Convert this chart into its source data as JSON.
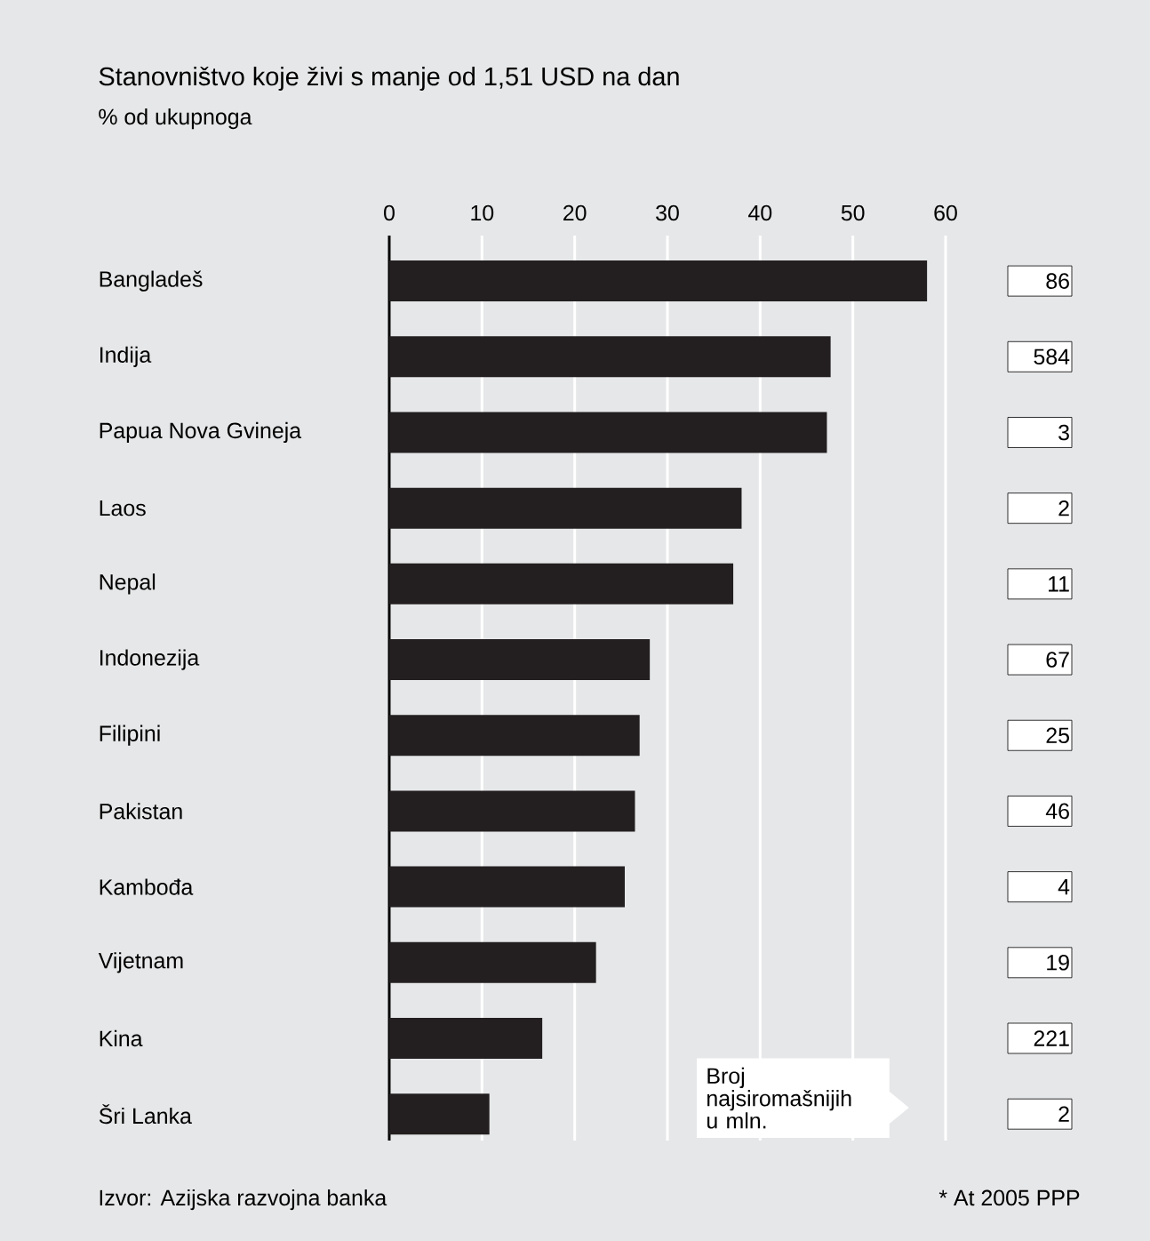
{
  "chart_data": [
    {
      "type": "bar",
      "orientation": "horizontal",
      "title": "Stanovništvo koje živi s manje od 1,51 USD na dan",
      "subtitle": "% od ukupnoga",
      "categories": [
        "Bangladeš",
        "Indija",
        "Papua Nova Gvineja",
        "Laos",
        "Nepal",
        "Indonezija",
        "Filipini",
        "Pakistan",
        "Kambođa",
        "Vijetnam",
        "Kina",
        "Šri Lanka"
      ],
      "values": [
        58.0,
        47.6,
        47.2,
        38.0,
        37.1,
        28.1,
        27.0,
        26.5,
        25.4,
        22.3,
        16.5,
        10.8
      ],
      "color": "#231f20",
      "xlim": [
        0,
        60
      ],
      "xticks": [
        0,
        10,
        20,
        30,
        40,
        50,
        60
      ],
      "grid": "x",
      "annotations": [
        "Izvor: Azijska razvojna banka",
        "* At 2005 PPP"
      ]
    },
    {
      "type": "other",
      "title": "Broj najsiromašnijih u mln.",
      "values": [
        86,
        584,
        3,
        2,
        11,
        67,
        25,
        46,
        4,
        19,
        221,
        2
      ],
      "data_labels": true
    }
  ]
}
